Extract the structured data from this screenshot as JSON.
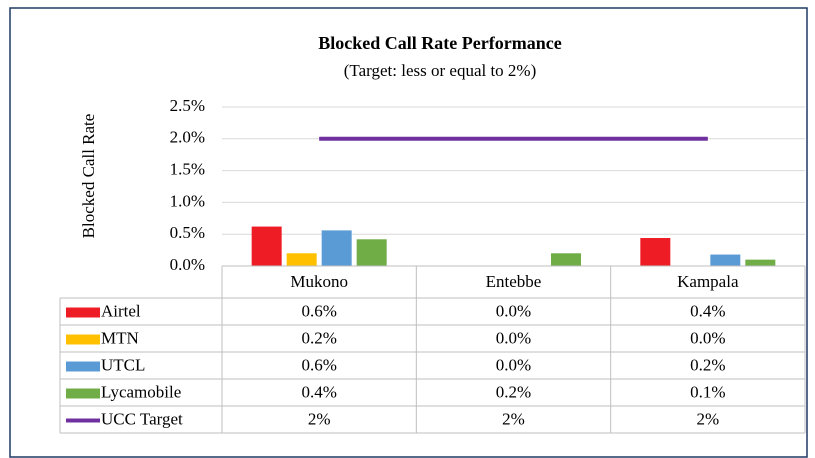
{
  "chart_data": {
    "type": "bar",
    "title": "Blocked Call Rate Performance",
    "subtitle": "(Target: less or equal to 2%)",
    "y_label": "Blocked Call Rate",
    "categories": [
      "Mukono",
      "Entebbe",
      "Kampala"
    ],
    "ylim": [
      0,
      2.5
    ],
    "yticks": [
      {
        "value": 0,
        "label": "0.0%"
      },
      {
        "value": 0.5,
        "label": "0.5%"
      },
      {
        "value": 1,
        "label": "1.0%"
      },
      {
        "value": 1.5,
        "label": "1.5%"
      },
      {
        "value": 2,
        "label": "2.0%"
      },
      {
        "value": 2.5,
        "label": "2.5%"
      }
    ],
    "grid": true,
    "series": [
      {
        "name": "Airtel",
        "color": "#ee1c25",
        "values": [
          0.62,
          0,
          0.44
        ],
        "value_labels": [
          "0.6%",
          "0.0%",
          "0.4%"
        ]
      },
      {
        "name": "MTN",
        "color": "#ffc000",
        "values": [
          0.2,
          0,
          0
        ],
        "value_labels": [
          "0.2%",
          "0.0%",
          "0.0%"
        ]
      },
      {
        "name": "UTCL",
        "color": "#5b9bd5",
        "values": [
          0.56,
          0,
          0.18
        ],
        "value_labels": [
          "0.6%",
          "0.0%",
          "0.2%"
        ]
      },
      {
        "name": "Lycamobile",
        "color": "#70ad47",
        "values": [
          0.42,
          0.2,
          0.1
        ],
        "value_labels": [
          "0.4%",
          "0.2%",
          "0.1%"
        ]
      },
      {
        "name": "UCC Target",
        "type": "line",
        "color": "#7030a0",
        "values": [
          2,
          2,
          2
        ],
        "value_labels": [
          "2%",
          "2%",
          "2%"
        ]
      }
    ]
  }
}
